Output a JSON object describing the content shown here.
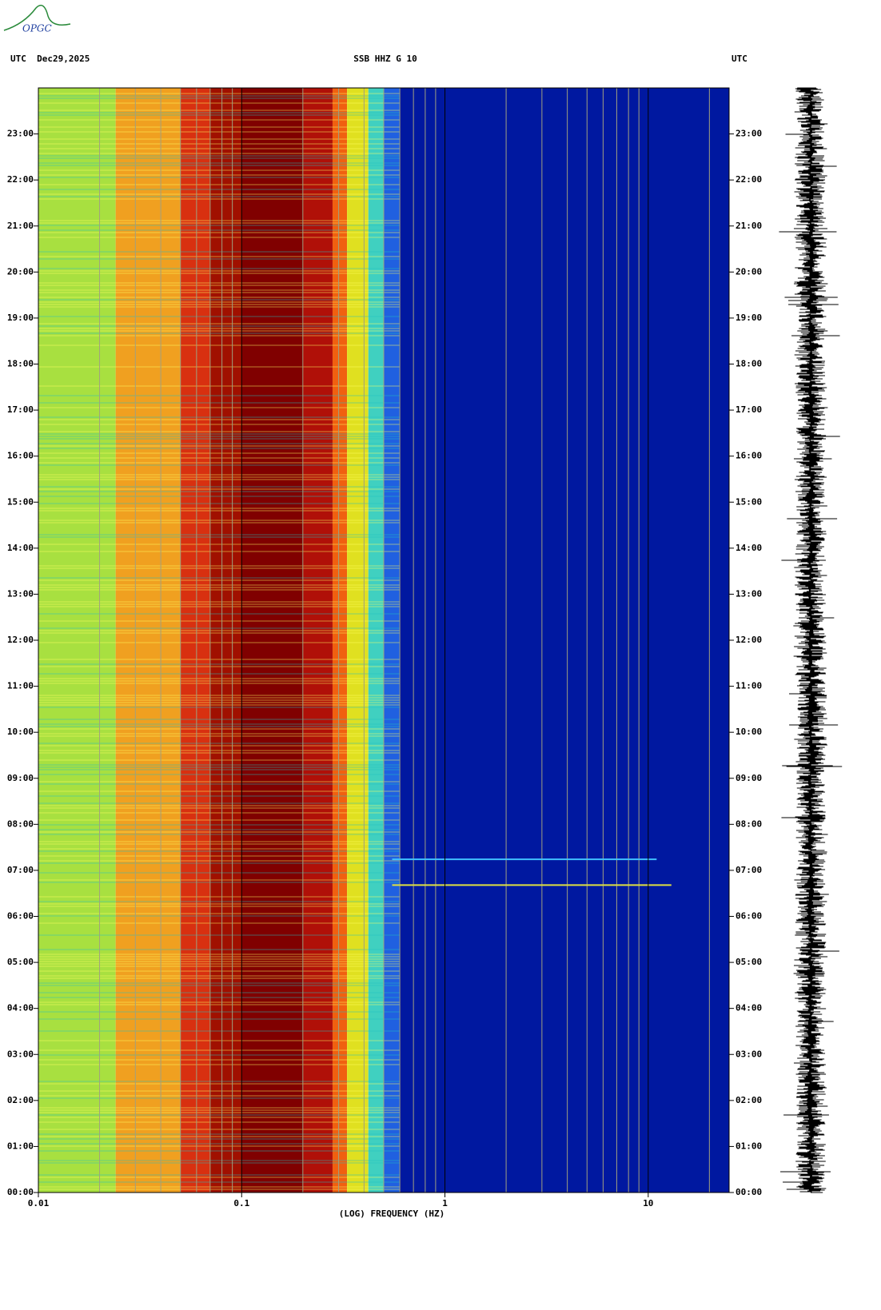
{
  "logo": "OPGC",
  "chart_data": {
    "type": "spectrogram",
    "title": "SSB HHZ G 10",
    "left_header": "UTC  Dec29,2025",
    "right_header": "UTC",
    "xlabel": "(LOG) FREQUENCY (HZ)",
    "xscale": "log",
    "xlim": [
      0.01,
      25
    ],
    "xticks": [
      0.01,
      0.1,
      1,
      10
    ],
    "xgrid": [
      0.02,
      0.03,
      0.04,
      0.05,
      0.06,
      0.07,
      0.08,
      0.09,
      0.2,
      0.3,
      0.4,
      0.5,
      0.6,
      0.7,
      0.8,
      0.9,
      2,
      3,
      4,
      5,
      6,
      7,
      8,
      9,
      20
    ],
    "ylim": [
      0,
      24
    ],
    "yticks": [
      {
        "value": 0,
        "label": "00:00"
      },
      {
        "value": 1,
        "label": "01:00"
      },
      {
        "value": 2,
        "label": "02:00"
      },
      {
        "value": 3,
        "label": "03:00"
      },
      {
        "value": 4,
        "label": "04:00"
      },
      {
        "value": 5,
        "label": "05:00"
      },
      {
        "value": 6,
        "label": "06:00"
      },
      {
        "value": 7,
        "label": "07:00"
      },
      {
        "value": 8,
        "label": "08:00"
      },
      {
        "value": 9,
        "label": "09:00"
      },
      {
        "value": 10,
        "label": "10:00"
      },
      {
        "value": 11,
        "label": "11:00"
      },
      {
        "value": 12,
        "label": "12:00"
      },
      {
        "value": 13,
        "label": "13:00"
      },
      {
        "value": 14,
        "label": "14:00"
      },
      {
        "value": 15,
        "label": "15:00"
      },
      {
        "value": 16,
        "label": "16:00"
      },
      {
        "value": 17,
        "label": "17:00"
      },
      {
        "value": 18,
        "label": "18:00"
      },
      {
        "value": 19,
        "label": "19:00"
      },
      {
        "value": 20,
        "label": "20:00"
      },
      {
        "value": 21,
        "label": "21:00"
      },
      {
        "value": 22,
        "label": "22:00"
      },
      {
        "value": 23,
        "label": "23:00"
      }
    ],
    "bands": [
      {
        "from": 0.01,
        "to": 0.024,
        "color": "#a8e040"
      },
      {
        "from": 0.024,
        "to": 0.05,
        "color": "#f0a020"
      },
      {
        "from": 0.05,
        "to": 0.07,
        "color": "#d83010"
      },
      {
        "from": 0.07,
        "to": 0.1,
        "color": "#a01000"
      },
      {
        "from": 0.1,
        "to": 0.2,
        "color": "#800000"
      },
      {
        "from": 0.2,
        "to": 0.28,
        "color": "#b01008"
      },
      {
        "from": 0.28,
        "to": 0.33,
        "color": "#f06010"
      },
      {
        "from": 0.33,
        "to": 0.42,
        "color": "#e0e020"
      },
      {
        "from": 0.42,
        "to": 0.5,
        "color": "#40d0c0"
      },
      {
        "from": 0.5,
        "to": 0.6,
        "color": "#2060e0"
      },
      {
        "from": 0.6,
        "to": 25,
        "color": "#0018a0"
      }
    ],
    "events": [
      {
        "time": 7.24,
        "fmin": 0.55,
        "fmax": 11,
        "color": "#40c0ff"
      },
      {
        "time": 6.68,
        "fmin": 0.55,
        "fmax": 13,
        "color": "#e0e040"
      }
    ]
  }
}
